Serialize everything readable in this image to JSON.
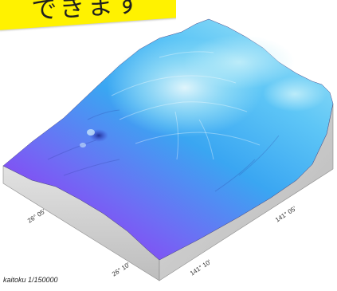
{
  "banner": {
    "text": "できます",
    "background_color": "#fff200"
  },
  "relief_map": {
    "colors": {
      "shallow": "#aeeaf7",
      "mid": "#3aa6f2",
      "deep": "#9a2cf2",
      "side_wall": "#d2d2d2"
    }
  },
  "coordinates": {
    "lat1": "26° 05'",
    "lat2": "26° 10'",
    "lon1": "141° 05'",
    "lon2": "141° 10'"
  },
  "caption": "kaitoku  1/150000"
}
